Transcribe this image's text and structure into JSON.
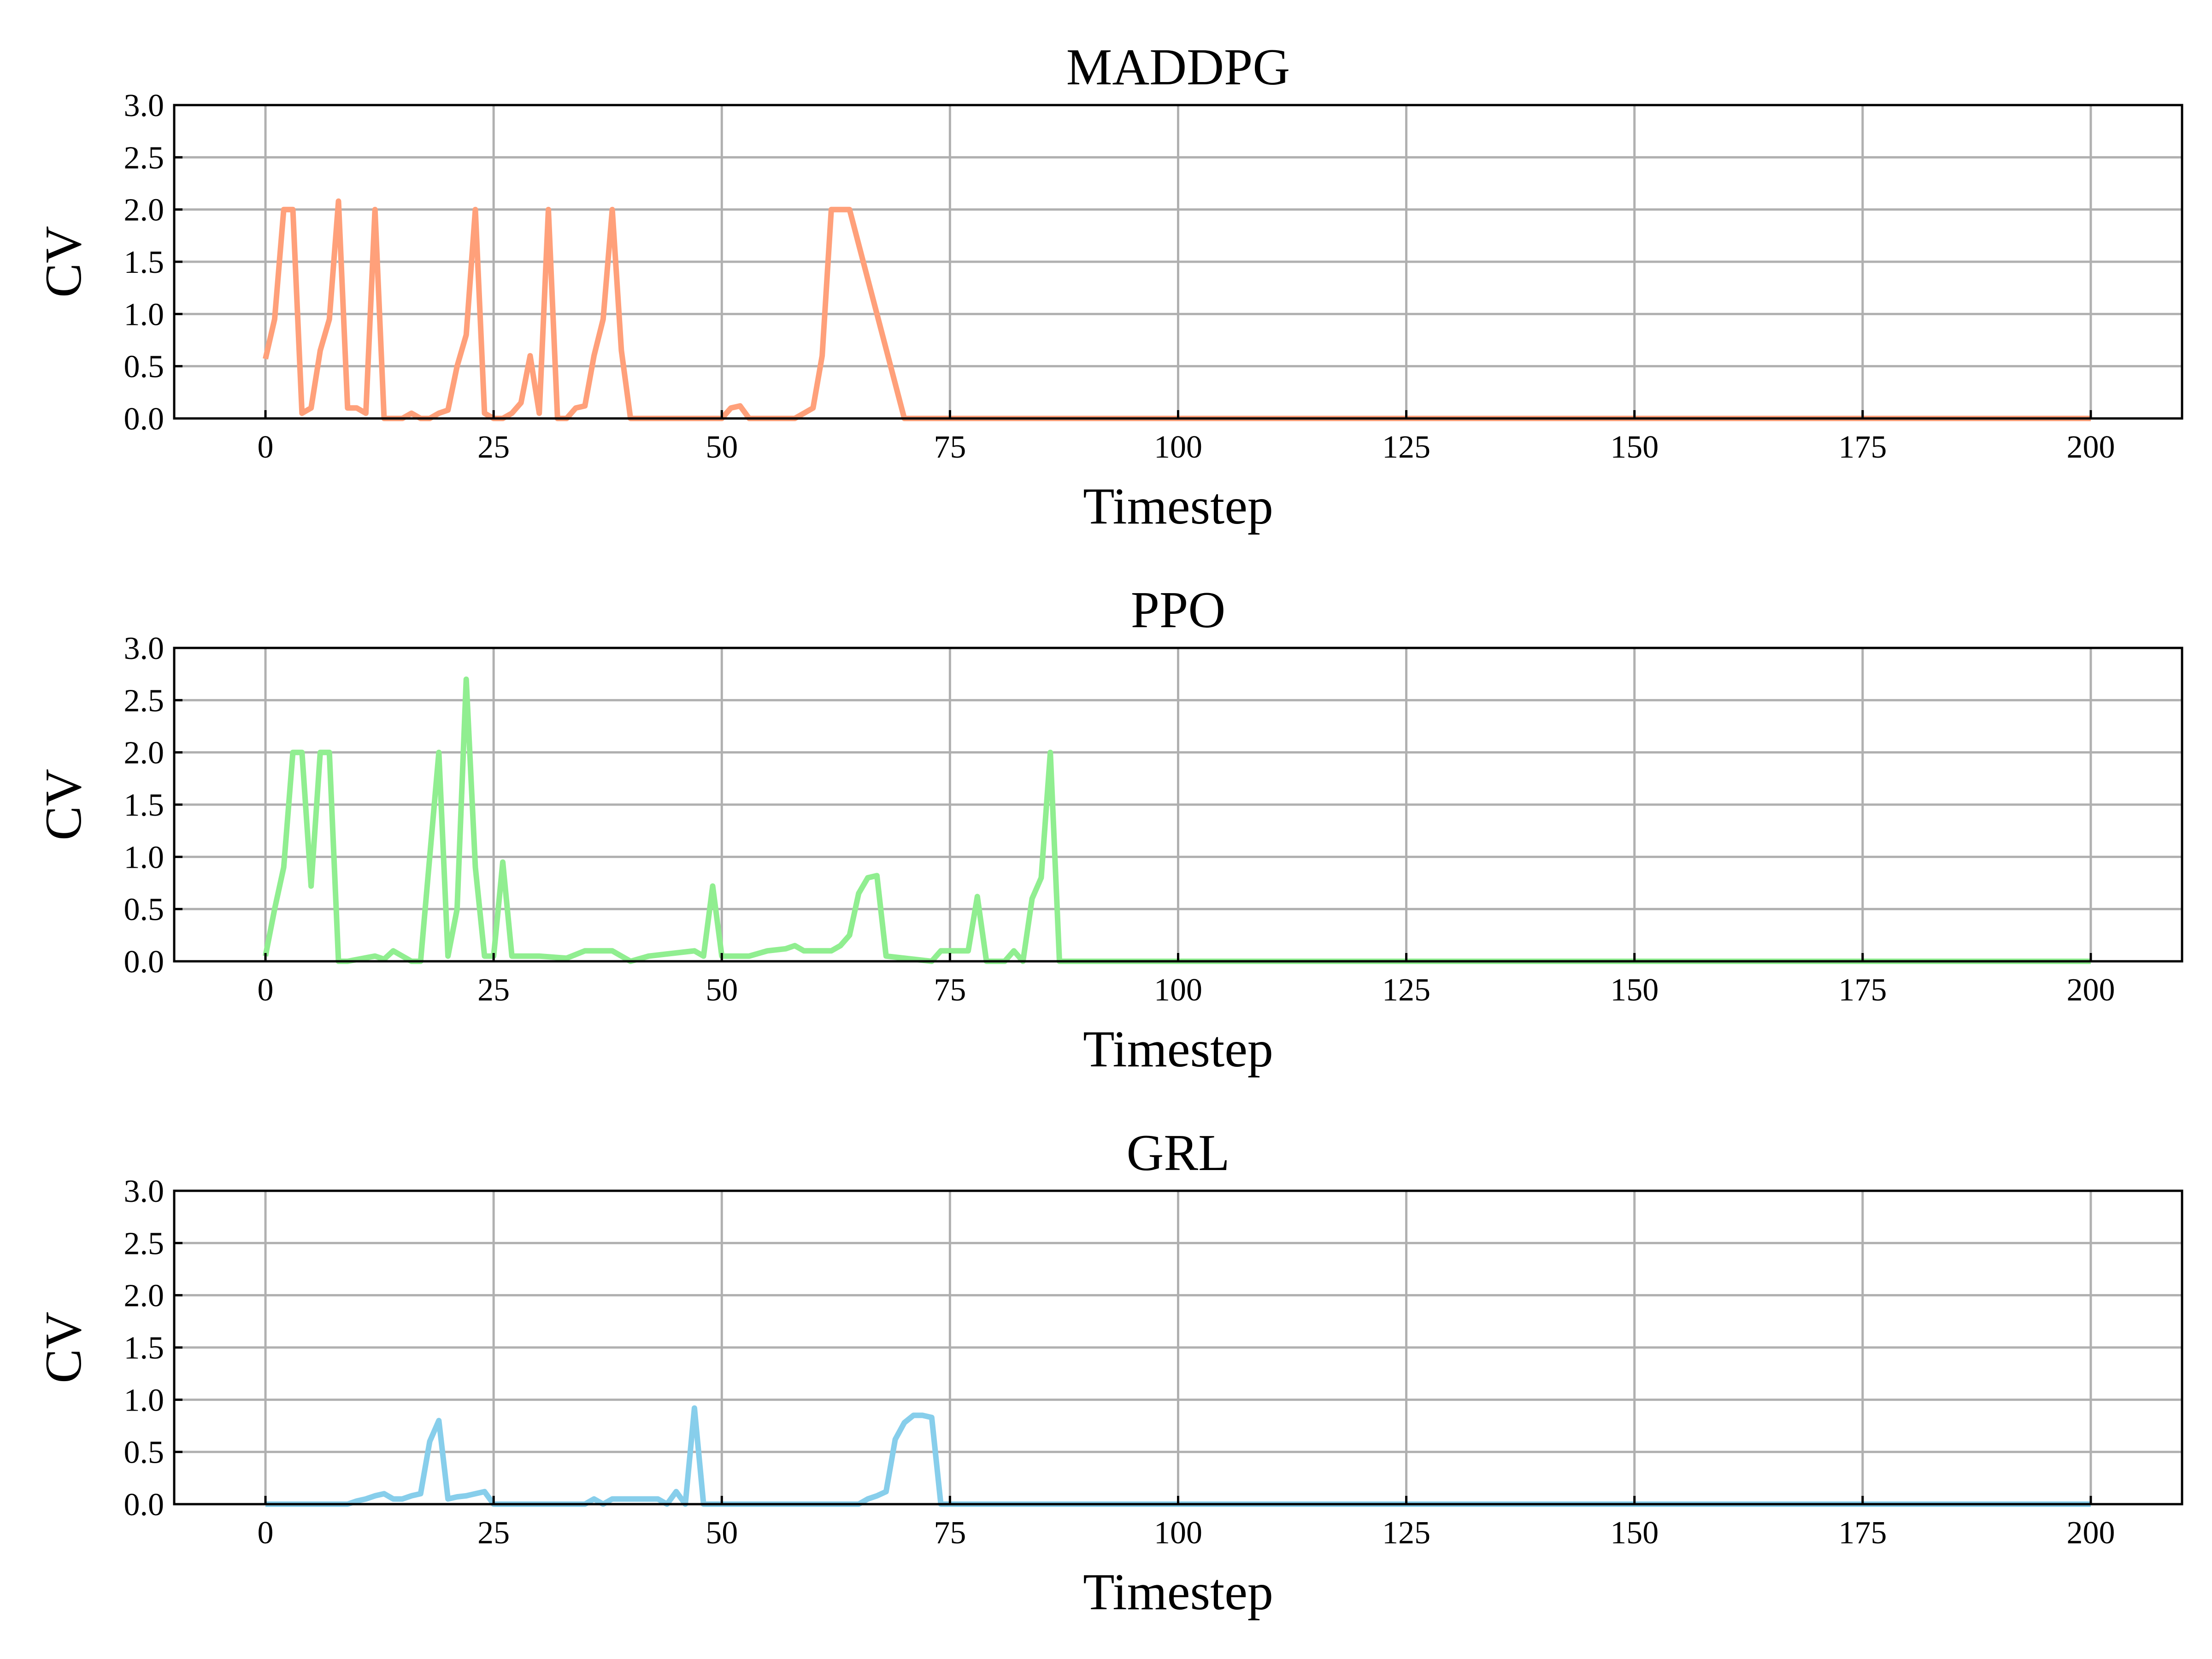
{
  "chart_data": [
    {
      "type": "line",
      "title": "MADDPG",
      "xlabel": "Timestep",
      "ylabel": "CV",
      "xlim": [
        -10,
        210
      ],
      "ylim": [
        0,
        3.0
      ],
      "xticks": [
        0,
        25,
        50,
        75,
        100,
        125,
        150,
        175,
        200
      ],
      "yticks": [
        0.0,
        0.5,
        1.0,
        1.5,
        2.0,
        2.5,
        3.0
      ],
      "grid": true,
      "color": "#FFA07A",
      "series": [
        {
          "x": [
            0,
            1,
            2,
            3,
            4,
            5,
            6,
            7,
            8,
            9,
            10,
            11,
            12,
            13,
            14,
            15,
            16,
            17,
            18,
            19,
            20,
            21,
            22,
            23,
            24,
            25,
            26,
            27,
            28,
            29,
            30,
            31,
            32,
            33,
            34,
            35,
            36,
            37,
            38,
            39,
            40,
            45,
            50,
            51,
            52,
            53,
            55,
            58,
            59,
            60,
            61,
            62,
            63,
            64,
            70,
            100,
            150,
            200
          ],
          "y": [
            0.57,
            0.95,
            2.0,
            2.0,
            0.05,
            0.1,
            0.65,
            0.95,
            2.08,
            0.1,
            0.1,
            0.05,
            2.0,
            0.0,
            0.0,
            0.0,
            0.05,
            0.0,
            0.0,
            0.05,
            0.08,
            0.5,
            0.8,
            2.0,
            0.05,
            0.0,
            0.0,
            0.05,
            0.15,
            0.6,
            0.05,
            2.0,
            0.0,
            0.0,
            0.1,
            0.12,
            0.6,
            0.95,
            2.0,
            0.65,
            0.0,
            0.0,
            0.0,
            0.1,
            0.12,
            0.0,
            0.0,
            0.0,
            0.05,
            0.1,
            0.6,
            2.0,
            2.0,
            2.0,
            0.0,
            0.0,
            0.0,
            0.0
          ]
        }
      ]
    },
    {
      "type": "line",
      "title": "PPO",
      "xlabel": "Timestep",
      "ylabel": "CV",
      "xlim": [
        -10,
        210
      ],
      "ylim": [
        0,
        3.0
      ],
      "xticks": [
        0,
        25,
        50,
        75,
        100,
        125,
        150,
        175,
        200
      ],
      "yticks": [
        0.0,
        0.5,
        1.0,
        1.5,
        2.0,
        2.5,
        3.0
      ],
      "grid": true,
      "color": "#90EE90",
      "series": [
        {
          "x": [
            0,
            1,
            2,
            3,
            4,
            5,
            6,
            7,
            8,
            9,
            12,
            13,
            14,
            15,
            16,
            17,
            18,
            19,
            20,
            21,
            22,
            23,
            24,
            25,
            26,
            27,
            30,
            33,
            35,
            37,
            38,
            40,
            42,
            44,
            47,
            48,
            49,
            50,
            53,
            55,
            57,
            58,
            59,
            61,
            62,
            63,
            64,
            65,
            66,
            67,
            68,
            70,
            73,
            74,
            77,
            78,
            79,
            81,
            82,
            83,
            84,
            85,
            86,
            87,
            100,
            150,
            200
          ],
          "y": [
            0.05,
            0.5,
            0.9,
            2.0,
            2.0,
            0.72,
            2.0,
            2.0,
            0.0,
            0.0,
            0.05,
            0.02,
            0.1,
            0.05,
            0.0,
            0.0,
            1.0,
            2.0,
            0.05,
            0.5,
            2.7,
            0.9,
            0.05,
            0.05,
            0.95,
            0.05,
            0.05,
            0.03,
            0.1,
            0.1,
            0.1,
            0.0,
            0.05,
            0.07,
            0.1,
            0.05,
            0.72,
            0.05,
            0.05,
            0.1,
            0.12,
            0.15,
            0.1,
            0.1,
            0.1,
            0.15,
            0.25,
            0.65,
            0.8,
            0.82,
            0.05,
            0.03,
            0.0,
            0.1,
            0.1,
            0.62,
            0.0,
            0.0,
            0.1,
            0.0,
            0.6,
            0.8,
            2.0,
            0.0,
            0.0,
            0.0,
            0.0
          ]
        }
      ]
    },
    {
      "type": "line",
      "title": "GRL",
      "xlabel": "Timestep",
      "ylabel": "CV",
      "xlim": [
        -10,
        210
      ],
      "ylim": [
        0,
        3.0
      ],
      "xticks": [
        0,
        25,
        50,
        75,
        100,
        125,
        150,
        175,
        200
      ],
      "yticks": [
        0.0,
        0.5,
        1.0,
        1.5,
        2.0,
        2.5,
        3.0
      ],
      "grid": true,
      "color": "#87CEEB",
      "series": [
        {
          "x": [
            0,
            5,
            9,
            10,
            11,
            12,
            13,
            14,
            15,
            16,
            17,
            18,
            19,
            20,
            21,
            22,
            23,
            24,
            25,
            26,
            30,
            35,
            36,
            37,
            38,
            40,
            42,
            43,
            44,
            45,
            46,
            47,
            48,
            50,
            60,
            65,
            66,
            67,
            68,
            69,
            70,
            71,
            72,
            73,
            74,
            75,
            100,
            150,
            200
          ],
          "y": [
            0.0,
            0.0,
            0.0,
            0.03,
            0.05,
            0.08,
            0.1,
            0.05,
            0.05,
            0.08,
            0.1,
            0.6,
            0.8,
            0.05,
            0.07,
            0.08,
            0.1,
            0.12,
            0.0,
            0.0,
            0.0,
            0.0,
            0.05,
            0.0,
            0.05,
            0.05,
            0.05,
            0.05,
            0.0,
            0.12,
            0.0,
            0.92,
            0.0,
            0.0,
            0.0,
            0.0,
            0.05,
            0.08,
            0.12,
            0.62,
            0.78,
            0.85,
            0.85,
            0.83,
            0.0,
            0.0,
            0.0,
            0.0,
            0.0
          ]
        }
      ]
    }
  ]
}
